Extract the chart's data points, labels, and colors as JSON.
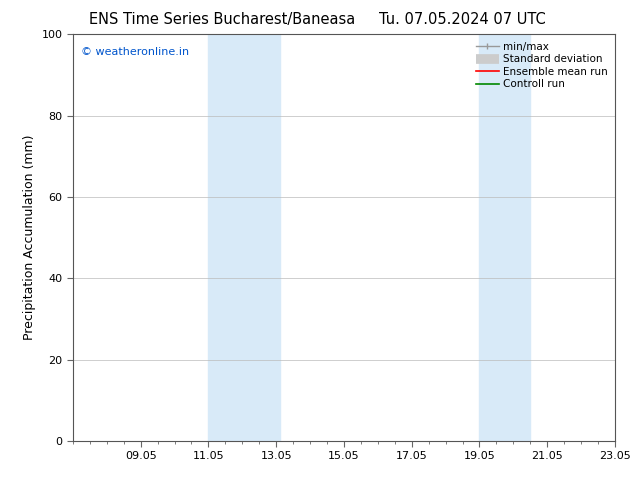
{
  "title_left": "ENS Time Series Bucharest/Baneasa",
  "title_right": "Tu. 07.05.2024 07 UTC",
  "ylabel": "Precipitation Accumulation (mm)",
  "watermark": "© weatheronline.in",
  "watermark_color": "#0055cc",
  "ylim": [
    0,
    100
  ],
  "x_ticks_labels": [
    "09.05",
    "11.05",
    "13.05",
    "15.05",
    "17.05",
    "19.05",
    "21.05",
    "23.05"
  ],
  "x_ticks_positions": [
    2,
    4,
    6,
    8,
    10,
    12,
    14,
    16
  ],
  "xlim": [
    0,
    16
  ],
  "shaded_bands": [
    {
      "x_start": 4,
      "x_end": 6.1
    },
    {
      "x_start": 12,
      "x_end": 13.5
    }
  ],
  "shade_color": "#d8eaf8",
  "background_color": "#ffffff",
  "grid_color": "#bbbbbb",
  "legend_items": [
    {
      "label": "min/max",
      "color": "#999999",
      "lw": 1.0,
      "type": "minmax"
    },
    {
      "label": "Standard deviation",
      "color": "#cccccc",
      "lw": 7,
      "type": "thick"
    },
    {
      "label": "Ensemble mean run",
      "color": "#ff0000",
      "lw": 1.2,
      "type": "line"
    },
    {
      "label": "Controll run",
      "color": "#008800",
      "lw": 1.2,
      "type": "line"
    }
  ],
  "title_fontsize": 10.5,
  "ylabel_fontsize": 9,
  "tick_fontsize": 8,
  "legend_fontsize": 7.5,
  "watermark_fontsize": 8
}
